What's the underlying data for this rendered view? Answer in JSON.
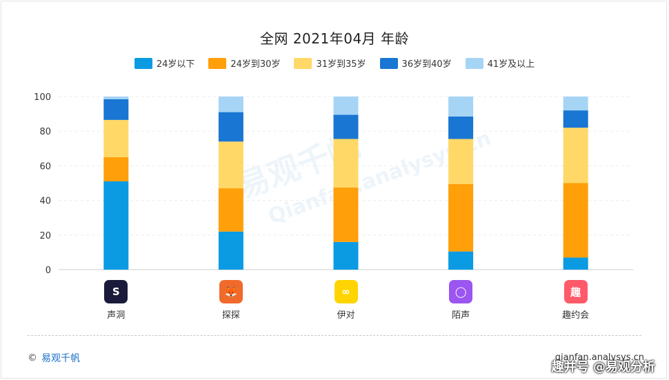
{
  "title": "全网 2021年04月 年龄",
  "legend": [
    {
      "label": "24岁以下",
      "color": "#0a9be3"
    },
    {
      "label": "24岁到30岁",
      "color": "#ff9f0a"
    },
    {
      "label": "31岁到35岁",
      "color": "#ffd867"
    },
    {
      "label": "36岁到40岁",
      "color": "#1976d2"
    },
    {
      "label": "41岁及以上",
      "color": "#a6d4f5"
    }
  ],
  "apps": [
    {
      "name": "声洞",
      "icon": "s-logo-icon",
      "icon_color": "#1a1a3a",
      "glyph": "S"
    },
    {
      "name": "探探",
      "icon": "fox-logo-icon",
      "icon_color": "#f06a2a",
      "glyph": "🦊"
    },
    {
      "name": "伊对",
      "icon": "infinity-logo-icon",
      "icon_color": "#ffd400",
      "glyph": "∞"
    },
    {
      "name": "陌声",
      "icon": "chat-bubble-logo-icon",
      "icon_color": "#9b55f0",
      "glyph": "◯"
    },
    {
      "name": "趣约会",
      "icon": "qu-character-logo-icon",
      "icon_color": "#ff5a6a",
      "glyph": "趣"
    }
  ],
  "chart_data": {
    "type": "bar",
    "stacked": true,
    "categories": [
      "声洞",
      "探探",
      "伊对",
      "陌声",
      "趣约会"
    ],
    "series": [
      {
        "name": "24岁以下",
        "color": "#0a9be3",
        "values": [
          51,
          22,
          16,
          10.5,
          7
        ]
      },
      {
        "name": "24岁到30岁",
        "color": "#ff9f0a",
        "values": [
          14,
          25,
          31.5,
          39,
          43
        ]
      },
      {
        "name": "31岁到35岁",
        "color": "#ffd867",
        "values": [
          21.5,
          27,
          28,
          26,
          32
        ]
      },
      {
        "name": "36岁到40岁",
        "color": "#1976d2",
        "values": [
          12,
          17,
          14,
          13,
          10
        ]
      },
      {
        "name": "41岁及以上",
        "color": "#a6d4f5",
        "values": [
          1.5,
          9,
          10.5,
          11.5,
          8
        ]
      }
    ],
    "yticks": [
      0,
      20,
      40,
      60,
      80,
      100
    ],
    "ylim": [
      0,
      100
    ],
    "grid": true
  },
  "watermark": "易观千帆",
  "watermark_sub": "Qianfan.analysys.cn",
  "footer": {
    "copyright_symbol": "©",
    "brand": "易观千帆",
    "site": "qianfan.analysys.cn",
    "badge": "趣并号 @易观分析"
  }
}
